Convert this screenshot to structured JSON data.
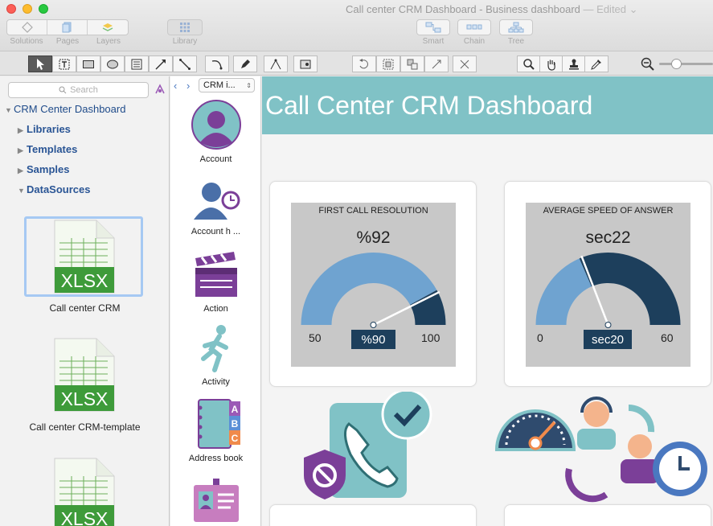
{
  "window": {
    "title": "Call center CRM Dashboard - Business dashboard",
    "edited": "— Edited ⌄"
  },
  "toolbar": {
    "solutions": "Solutions",
    "pages": "Pages",
    "layers": "Layers",
    "library": "Library",
    "smart": "Smart",
    "chain": "Chain",
    "tree": "Tree"
  },
  "sidebar": {
    "search_placeholder": "Search",
    "root": "CRM Center Dashboard",
    "items": [
      "Libraries",
      "Templates",
      "Samples",
      "DataSources"
    ],
    "files": [
      {
        "name": "Call center CRM",
        "type": "XLSX"
      },
      {
        "name": "Call center CRM-template",
        "type": "XLSX"
      },
      {
        "name": "",
        "type": "XLSX"
      }
    ]
  },
  "library": {
    "selected": "CRM i...",
    "items": [
      "Account",
      "Account h ...",
      "Action",
      "Activity",
      "Address book"
    ]
  },
  "dashboard": {
    "title": "Call Center CRM Dashboard",
    "gauges": [
      {
        "title": "FIRST CALL RESOLUTION",
        "value": "%92",
        "min": "50",
        "max": "100",
        "target": "%90",
        "fraction": 0.84
      },
      {
        "title": "AVERAGE SPEED OF ANSWER",
        "value": "sec22",
        "min": "0",
        "max": "60",
        "target": "sec20",
        "fraction": 0.37
      }
    ]
  },
  "colors": {
    "banner": "#80c2c6",
    "gauge_light": "#6fa3d0",
    "gauge_dark": "#1d3f5c",
    "accent_purple": "#7b3f98"
  }
}
